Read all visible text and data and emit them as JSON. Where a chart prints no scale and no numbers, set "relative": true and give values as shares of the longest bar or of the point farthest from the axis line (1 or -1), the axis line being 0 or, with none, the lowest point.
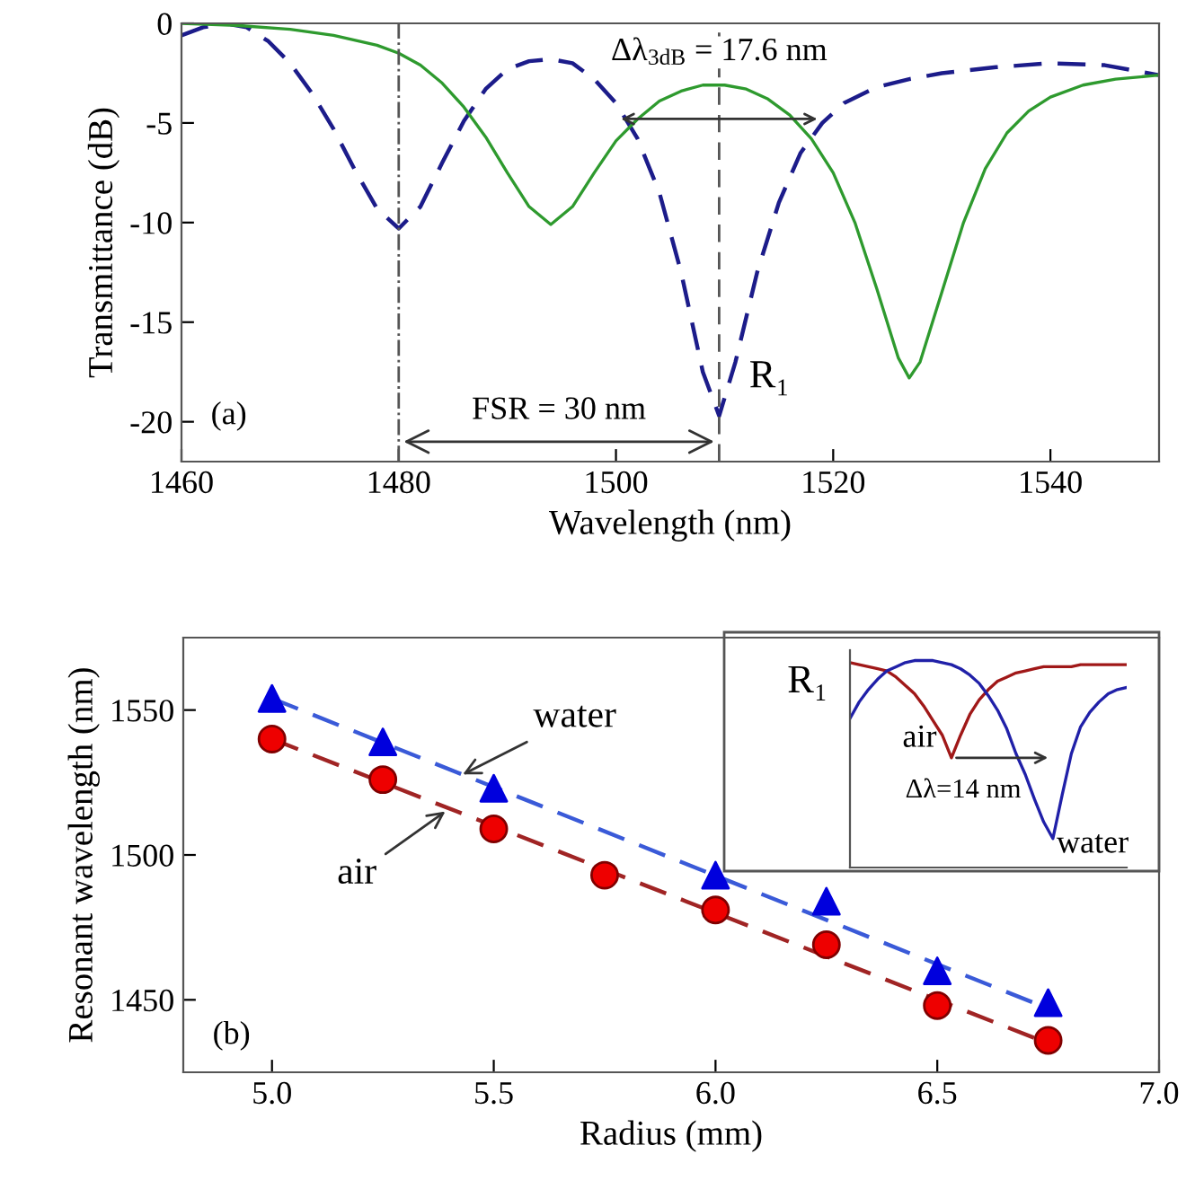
{
  "chart_data": [
    {
      "type": "line",
      "xlabel": "Wavelength (nm)",
      "ylabel": "Transmittance (dB)",
      "xlim": [
        1460,
        1550
      ],
      "ylim": [
        -22,
        0
      ],
      "xticks": [
        1460,
        1480,
        1500,
        1520,
        1540
      ],
      "yticks": [
        0,
        -5,
        -10,
        -15,
        -20
      ],
      "grid": false,
      "legend": false,
      "series": [
        {
          "color": "#1c1c8a",
          "line_style": "dashed",
          "x": [
            1460,
            1462,
            1464,
            1466,
            1468,
            1470,
            1472,
            1474,
            1476,
            1478,
            1480,
            1482,
            1484,
            1486,
            1488,
            1490,
            1492,
            1494,
            1496,
            1498,
            1500,
            1502,
            1504,
            1506,
            1508,
            1509.5,
            1511,
            1513,
            1515,
            1517,
            1519,
            1521,
            1524,
            1527,
            1530,
            1535,
            1540,
            1545,
            1550
          ],
          "values": [
            -0.6,
            -0.2,
            0,
            -0.2,
            -0.9,
            -2.0,
            -3.5,
            -5.3,
            -7.4,
            -9.3,
            -10.3,
            -9.2,
            -7.0,
            -4.9,
            -3.3,
            -2.3,
            -1.9,
            -1.8,
            -2.0,
            -2.8,
            -4.0,
            -5.8,
            -8.5,
            -12.5,
            -17.5,
            -19.7,
            -17.0,
            -12.5,
            -9.0,
            -6.5,
            -5.0,
            -4.0,
            -3.2,
            -2.8,
            -2.5,
            -2.2,
            -2.0,
            -2.1,
            -2.6
          ]
        },
        {
          "color": "#2e9a2e",
          "line_style": "solid",
          "x": [
            1460,
            1465,
            1470,
            1474,
            1478,
            1480,
            1482,
            1484,
            1486,
            1488,
            1490,
            1492,
            1494,
            1496,
            1498,
            1500,
            1502,
            1504,
            1506,
            1508,
            1510,
            1512,
            1514,
            1516,
            1518,
            1520,
            1522,
            1524,
            1526,
            1527,
            1528,
            1530,
            1532,
            1534,
            1536,
            1538,
            1540,
            1543,
            1546,
            1550
          ],
          "values": [
            0,
            -0.1,
            -0.3,
            -0.6,
            -1.1,
            -1.5,
            -2.1,
            -3.0,
            -4.2,
            -5.7,
            -7.5,
            -9.2,
            -10.1,
            -9.2,
            -7.5,
            -5.9,
            -4.8,
            -3.9,
            -3.4,
            -3.1,
            -3.1,
            -3.3,
            -3.8,
            -4.6,
            -5.8,
            -7.5,
            -10.0,
            -13.3,
            -16.8,
            -17.8,
            -17.0,
            -13.5,
            -10.0,
            -7.3,
            -5.5,
            -4.4,
            -3.7,
            -3.1,
            -2.8,
            -2.6
          ]
        }
      ],
      "ref_lines": [
        {
          "axis": "x",
          "value": 1480,
          "line_style": "dashdot",
          "color": "#555555"
        },
        {
          "axis": "x",
          "value": 1509.5,
          "line_style": "dashed",
          "color": "#555555"
        }
      ],
      "annotations": [
        {
          "text": "Δλ$_{3dB}$ = 17.6 nm",
          "x": 1519,
          "y": -4.8
        },
        {
          "text": "FSR = 30 nm",
          "x": 1509.5,
          "y": -21
        },
        {
          "text": "R₁",
          "x": 1509.5,
          "y": -19.7
        },
        "(a)"
      ]
    },
    {
      "type": "scatter",
      "xlabel": "Radius (mm)",
      "ylabel": "Resonant wavelength (nm)",
      "xlim": [
        4.8,
        7.0
      ],
      "ylim": [
        1425,
        1575
      ],
      "xticks": [
        {
          "value": 5.0,
          "label": "5.0"
        },
        {
          "value": 5.5,
          "label": "5.5"
        },
        {
          "value": 6.0,
          "label": "6.0"
        },
        {
          "value": 6.5,
          "label": "6.5"
        },
        {
          "value": 7.0,
          "label": "7.0"
        }
      ],
      "yticks": [
        1450,
        1500,
        1550
      ],
      "grid": false,
      "legend": false,
      "series": [
        {
          "type": "line",
          "color": "#3a5ad8",
          "line_style": "dashed",
          "marker": "none",
          "x": [
            5.0,
            6.75
          ],
          "values": [
            1554,
            1447
          ]
        },
        {
          "type": "line",
          "color": "#a02424",
          "line_style": "dashed",
          "marker": "none",
          "x": [
            5.0,
            6.75
          ],
          "values": [
            1540,
            1435
          ]
        },
        {
          "type": "scatter",
          "color": "#0000dd",
          "marker": "triangle",
          "x": [
            5.0,
            5.25,
            5.5,
            5.75,
            6.0,
            6.25,
            6.5,
            6.75
          ],
          "values": [
            1554,
            1539,
            1523,
            null,
            1493,
            1484,
            1460,
            1449
          ]
        },
        {
          "type": "scatter",
          "color": "#ee0000",
          "marker": "circle",
          "x": [
            5.0,
            5.25,
            5.5,
            5.75,
            6.0,
            6.25,
            6.5,
            6.75
          ],
          "values": [
            1540,
            1526,
            1509,
            1493,
            1481,
            1469,
            1448,
            1436
          ]
        }
      ],
      "annotations": [
        {
          "text": "water",
          "x": 5.42,
          "y": 1527
        },
        {
          "text": "air",
          "x": 5.4,
          "y": 1516
        },
        "(b)"
      ]
    },
    {
      "type": "line",
      "relative": true,
      "categories": [
        null,
        null,
        null,
        null,
        null,
        null,
        null,
        null,
        null,
        null,
        null,
        null,
        null,
        null,
        null,
        null,
        null,
        null,
        null,
        null,
        null,
        null,
        null,
        null,
        null,
        null,
        null,
        null,
        null,
        null,
        null
      ],
      "series": [
        {
          "color": "#a01818",
          "values": [
            0.99,
            0.98,
            0.97,
            0.96,
            0.95,
            0.92,
            0.88,
            0.84,
            0.78,
            0.71,
            0.64,
            0.53,
            0.64,
            0.74,
            0.81,
            0.86,
            0.9,
            0.92,
            0.94,
            0.95,
            0.96,
            0.97,
            0.97,
            0.97,
            0.97,
            0.98,
            0.98,
            0.98,
            0.98,
            0.98,
            0.98
          ]
        },
        {
          "color": "#2020a8",
          "values": [
            0.72,
            0.8,
            0.86,
            0.91,
            0.95,
            0.97,
            0.99,
            1.0,
            1.0,
            1.0,
            0.99,
            0.98,
            0.96,
            0.93,
            0.89,
            0.83,
            0.76,
            0.67,
            0.55,
            0.45,
            0.33,
            0.22,
            0.14,
            0.35,
            0.55,
            0.68,
            0.75,
            0.8,
            0.84,
            0.86,
            0.87
          ]
        }
      ],
      "annotations": [
        "R₁",
        "air",
        "Δλ=14 nm",
        "water"
      ]
    }
  ]
}
